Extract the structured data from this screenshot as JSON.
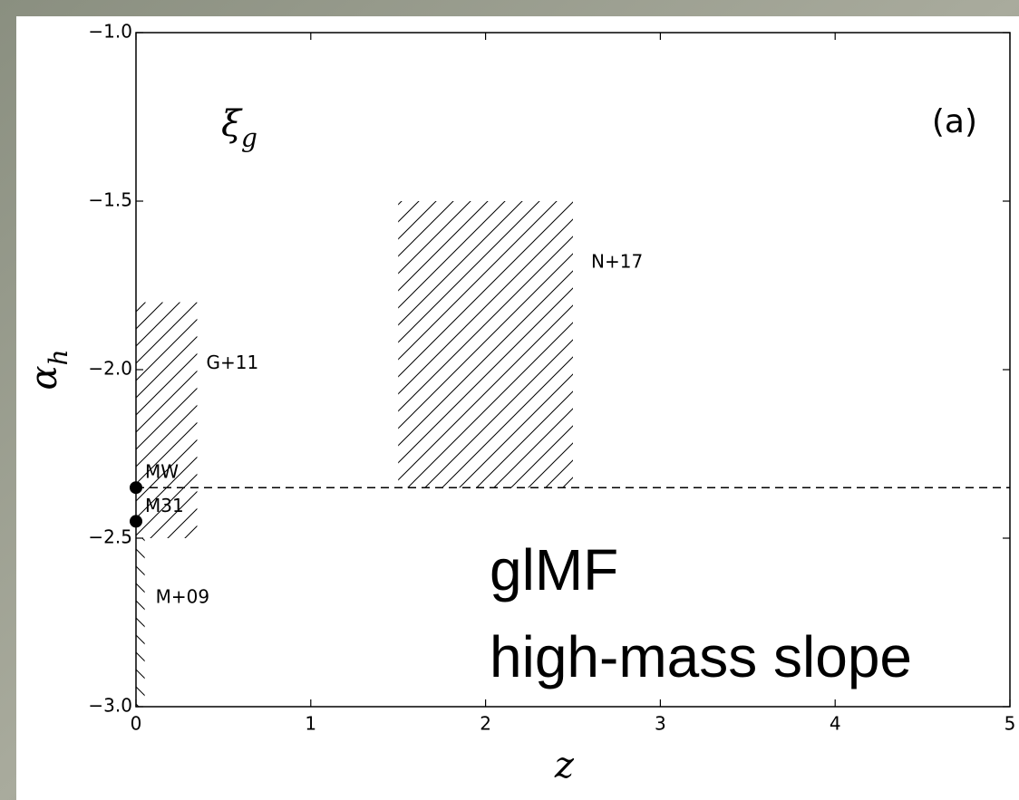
{
  "chart_data": {
    "type": "region",
    "panel_label": "(a)",
    "corner_label": {
      "symbol": "ξ",
      "subscript": "g"
    },
    "x_label": "z",
    "y_label": {
      "symbol": "α",
      "subscript": "h"
    },
    "overlay_text": [
      "glMF",
      "high-mass slope"
    ],
    "xlim": [
      0,
      5
    ],
    "xticks": [
      0,
      1,
      2,
      3,
      4,
      5
    ],
    "ylim": [
      -3.0,
      -1.0
    ],
    "yticks": [
      {
        "value": -3.0,
        "label": "−3.0"
      },
      {
        "value": -2.5,
        "label": "−2.5"
      },
      {
        "value": -2.0,
        "label": "−2.0"
      },
      {
        "value": -1.5,
        "label": "−1.5"
      },
      {
        "value": -1.0,
        "label": "−1.0"
      }
    ],
    "regions": [
      {
        "label": "N+17",
        "x": [
          1.5,
          2.5
        ],
        "y": [
          -2.35,
          -1.5
        ],
        "hatch": "/"
      },
      {
        "label": "G+11",
        "x": [
          0,
          0.35
        ],
        "y": [
          -2.5,
          -1.8
        ],
        "hatch": "/"
      },
      {
        "label": "M+09",
        "x": [
          0,
          0.05
        ],
        "y": [
          -3.0,
          -2.5
        ],
        "hatch": "\\"
      }
    ],
    "points": [
      {
        "label": "MW",
        "x": 0,
        "y": -2.35
      },
      {
        "label": "M31",
        "x": 0,
        "y": -2.45
      }
    ],
    "hline": -2.35,
    "color": "#000000"
  }
}
